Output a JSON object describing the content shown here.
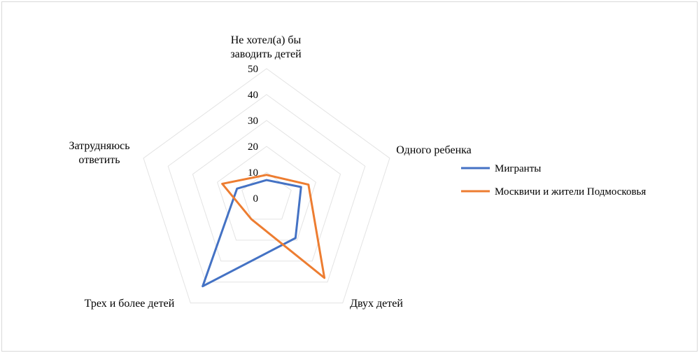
{
  "chart_data": {
    "type": "radar",
    "categories": [
      [
        "Не хотел(а) бы",
        "заводить детей"
      ],
      [
        "Одного ребенка"
      ],
      [
        "Двух детей"
      ],
      [
        "Трех и более детей"
      ],
      [
        "Затрудняюсь",
        "ответить"
      ]
    ],
    "ticks": [
      "0",
      "10",
      "20",
      "30",
      "40",
      "50"
    ],
    "rlim": [
      0,
      50
    ],
    "grid": true,
    "legend_position": "right",
    "series": [
      {
        "name": "Мигранты",
        "color": "#4472C4",
        "values": [
          7,
          14,
          19,
          42,
          12
        ]
      },
      {
        "name": "Москвичи и жители Подмосковья",
        "color": "#ED7D31",
        "values": [
          9,
          17,
          38,
          10,
          18
        ]
      }
    ]
  }
}
